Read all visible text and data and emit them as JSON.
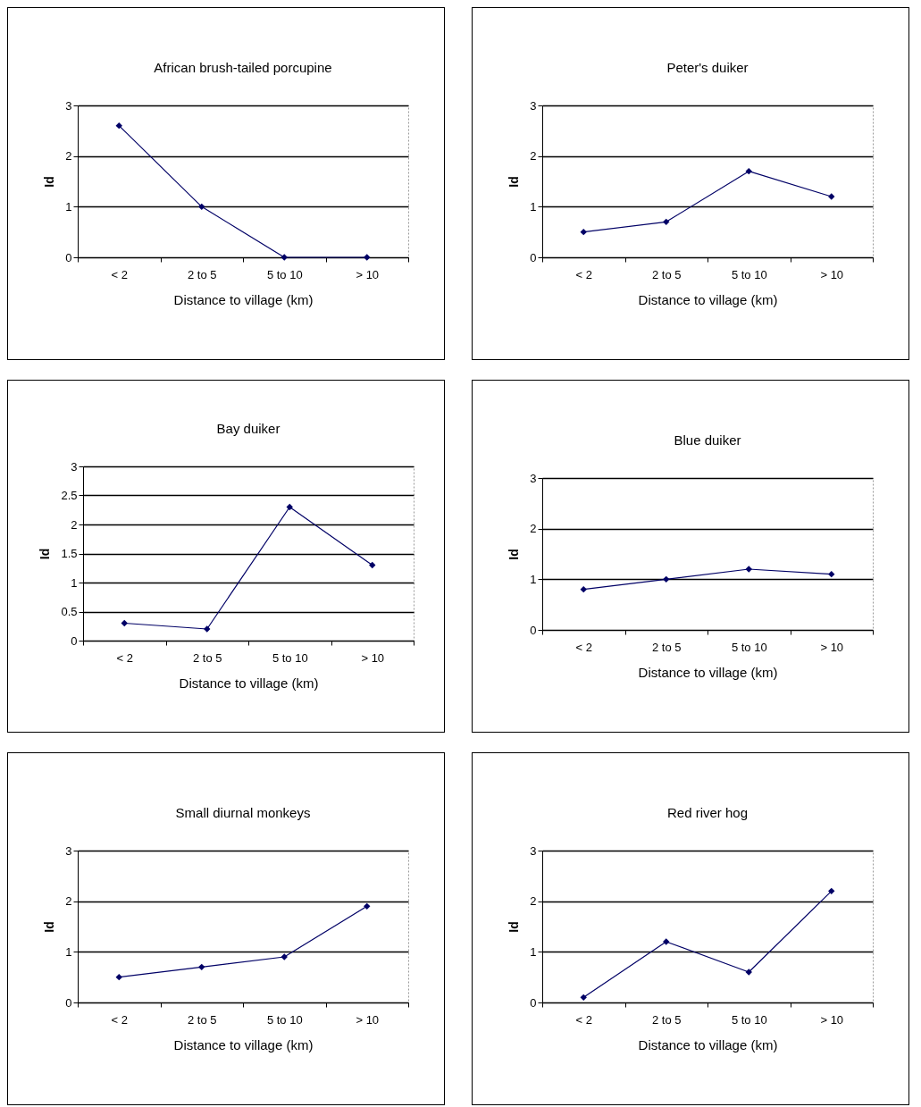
{
  "chart_data": [
    {
      "type": "line",
      "title": "African brush-tailed porcupine",
      "xlabel": "Distance to village (km)",
      "ylabel": "Id",
      "categories": [
        "< 2",
        "2 to 5",
        "5 to 10",
        "> 10"
      ],
      "values": [
        2.6,
        1.0,
        0,
        0
      ],
      "color": "#000066",
      "ylim": [
        0,
        3
      ],
      "yticks": [
        0,
        1,
        2,
        3
      ],
      "grid": "y",
      "marker": "diamond"
    },
    {
      "type": "line",
      "title": "Peter's duiker",
      "xlabel": "Distance to village (km)",
      "ylabel": "Id",
      "categories": [
        "< 2",
        "2 to 5",
        "5 to 10",
        "> 10"
      ],
      "values": [
        0.5,
        0.7,
        1.7,
        1.2
      ],
      "color": "#000066",
      "ylim": [
        0,
        3
      ],
      "yticks": [
        0,
        1,
        2,
        3
      ],
      "grid": "y",
      "marker": "diamond"
    },
    {
      "type": "line",
      "title": "Bay duiker",
      "xlabel": "Distance to village (km)",
      "ylabel": "Id",
      "categories": [
        "< 2",
        "2 to 5",
        "5 to 10",
        "> 10"
      ],
      "values": [
        0.3,
        0.2,
        2.3,
        1.3
      ],
      "color": "#000066",
      "ylim": [
        0,
        3
      ],
      "yticks": [
        0,
        0.5,
        1,
        1.5,
        2,
        2.5,
        3
      ],
      "grid": "y",
      "marker": "diamond"
    },
    {
      "type": "line",
      "title": "Blue duiker",
      "xlabel": "Distance to village (km)",
      "ylabel": "Id",
      "categories": [
        "< 2",
        "2 to 5",
        "5 to 10",
        "> 10"
      ],
      "values": [
        0.8,
        1.0,
        1.2,
        1.1
      ],
      "color": "#000066",
      "ylim": [
        0,
        3
      ],
      "yticks": [
        0,
        1,
        2,
        3
      ],
      "grid": "y",
      "marker": "diamond"
    },
    {
      "type": "line",
      "title": "Small diurnal monkeys",
      "xlabel": "Distance to village (km)",
      "ylabel": "Id",
      "categories": [
        "< 2",
        "2 to 5",
        "5 to 10",
        "> 10"
      ],
      "values": [
        0.5,
        0.7,
        0.9,
        1.9
      ],
      "color": "#000066",
      "ylim": [
        0,
        3
      ],
      "yticks": [
        0,
        1,
        2,
        3
      ],
      "grid": "y",
      "marker": "diamond"
    },
    {
      "type": "line",
      "title": "Red river hog",
      "xlabel": "Distance to village (km)",
      "ylabel": "Id",
      "categories": [
        "< 2",
        "2 to 5",
        "5 to 10",
        "> 10"
      ],
      "values": [
        0.1,
        1.2,
        0.6,
        2.2
      ],
      "color": "#000066",
      "ylim": [
        0,
        3
      ],
      "yticks": [
        0,
        1,
        2,
        3
      ],
      "grid": "y",
      "marker": "diamond"
    }
  ]
}
